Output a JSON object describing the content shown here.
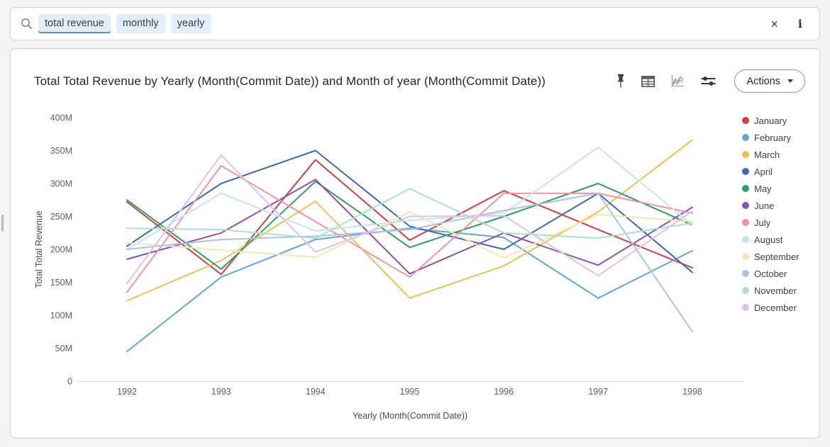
{
  "search_bar": {
    "tokens": [
      {
        "label": "total revenue",
        "active": true
      },
      {
        "label": "monthly",
        "active": false
      },
      {
        "label": "yearly",
        "active": false
      }
    ],
    "clear_glyph": "×",
    "info_glyph": "i"
  },
  "panel": {
    "title": "Total Total Revenue by Yearly (Month(Commit Date)) and Month of year (Month(Commit Date))",
    "toolbar": {
      "icons": [
        "pin-icon",
        "table-icon",
        "line-chart-icon",
        "settings-icon"
      ],
      "actions_label": "Actions"
    }
  },
  "chart_data": {
    "type": "line",
    "title": "Total Total Revenue by Yearly (Month(Commit Date)) and Month of year (Month(Commit Date))",
    "xlabel": "Yearly (Month(Commit Date))",
    "ylabel": "Total Total Revenue",
    "x": [
      1992,
      1993,
      1994,
      1995,
      1996,
      1997,
      1998
    ],
    "ylim_m": [
      0,
      400
    ],
    "ytick_step_m": 50,
    "ytick_labels": [
      "0",
      "50M",
      "100M",
      "150M",
      "200M",
      "250M",
      "300M",
      "350M",
      "400M"
    ],
    "values_unit": "millions",
    "grid": false,
    "legend_position": "right",
    "series": [
      {
        "name": "January",
        "color": "#d63c42",
        "values": [
          272,
          162,
          336,
          214,
          289,
          230,
          172
        ]
      },
      {
        "name": "February",
        "color": "#5ea8d8",
        "values": [
          45,
          158,
          215,
          232,
          218,
          126,
          198
        ]
      },
      {
        "name": "March",
        "color": "#eec14e",
        "values": [
          122,
          183,
          273,
          126,
          175,
          257,
          366
        ]
      },
      {
        "name": "April",
        "color": "#3c68b0",
        "values": [
          205,
          300,
          350,
          235,
          200,
          285,
          165
        ]
      },
      {
        "name": "May",
        "color": "#2ba05e",
        "values": [
          275,
          170,
          303,
          203,
          250,
          300,
          237
        ]
      },
      {
        "name": "June",
        "color": "#8a51b4",
        "values": [
          185,
          225,
          306,
          163,
          225,
          176,
          264
        ]
      },
      {
        "name": "July",
        "color": "#f293a0",
        "values": [
          135,
          327,
          242,
          158,
          285,
          285,
          255
        ]
      },
      {
        "name": "August",
        "color": "#c4e3f6",
        "values": [
          200,
          285,
          228,
          244,
          255,
          355,
          237
        ]
      },
      {
        "name": "September",
        "color": "#f8e5b0",
        "values": [
          210,
          199,
          188,
          257,
          187,
          253,
          242
        ]
      },
      {
        "name": "October",
        "color": "#adc2e2",
        "values": [
          200,
          215,
          220,
          230,
          259,
          285,
          75
        ]
      },
      {
        "name": "November",
        "color": "#abe2c3",
        "values": [
          232,
          230,
          217,
          292,
          225,
          217,
          240
        ]
      },
      {
        "name": "December",
        "color": "#dcc1ee",
        "values": [
          148,
          343,
          196,
          250,
          251,
          160,
          258
        ]
      }
    ]
  }
}
